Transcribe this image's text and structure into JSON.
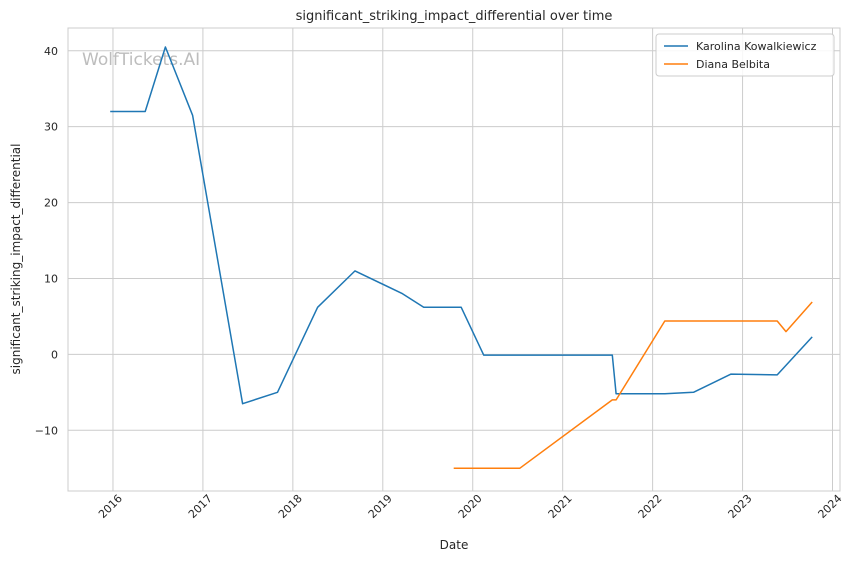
{
  "chart_data": {
    "type": "line",
    "title": "significant_striking_impact_differential over time",
    "xlabel": "Date",
    "ylabel": "significant_striking_impact_differential",
    "watermark": "WolfTickets.AI",
    "x_ticks": [
      "2016",
      "2017",
      "2018",
      "2019",
      "2020",
      "2021",
      "2022",
      "2023",
      "2024"
    ],
    "y_ticks": [
      "−10",
      "0",
      "10",
      "20",
      "30",
      "40"
    ],
    "xlim": [
      "2015-07-01",
      "2024-02-01"
    ],
    "ylim": [
      -18,
      43
    ],
    "grid": true,
    "legend_position": "top-right",
    "series": [
      {
        "name": "Karolina Kowalkiewicz",
        "color": "#1f77b4",
        "points": [
          [
            "2015-12-20",
            32.0
          ],
          [
            "2016-05-10",
            32.0
          ],
          [
            "2016-08-01",
            40.5
          ],
          [
            "2016-11-20",
            31.5
          ],
          [
            "2017-06-10",
            -6.5
          ],
          [
            "2017-10-30",
            -5.0
          ],
          [
            "2018-04-10",
            6.2
          ],
          [
            "2018-09-10",
            11.0
          ],
          [
            "2019-03-20",
            8.0
          ],
          [
            "2019-06-15",
            6.2
          ],
          [
            "2019-11-15",
            6.2
          ],
          [
            "2020-02-15",
            -0.1
          ],
          [
            "2021-07-20",
            -0.1
          ],
          [
            "2021-08-05",
            -5.2
          ],
          [
            "2022-02-20",
            -5.2
          ],
          [
            "2022-06-15",
            -5.0
          ],
          [
            "2022-11-15",
            -2.6
          ],
          [
            "2023-05-20",
            -2.7
          ],
          [
            "2023-10-10",
            2.3
          ]
        ]
      },
      {
        "name": "Diana Belbita",
        "color": "#ff7f0e",
        "points": [
          [
            "2019-10-15",
            -15.0
          ],
          [
            "2020-07-10",
            -15.0
          ],
          [
            "2021-07-20",
            -6.0
          ],
          [
            "2021-08-05",
            -6.0
          ],
          [
            "2022-02-20",
            4.4
          ],
          [
            "2023-05-20",
            4.4
          ],
          [
            "2023-06-25",
            3.0
          ],
          [
            "2023-10-10",
            6.9
          ]
        ]
      }
    ]
  }
}
